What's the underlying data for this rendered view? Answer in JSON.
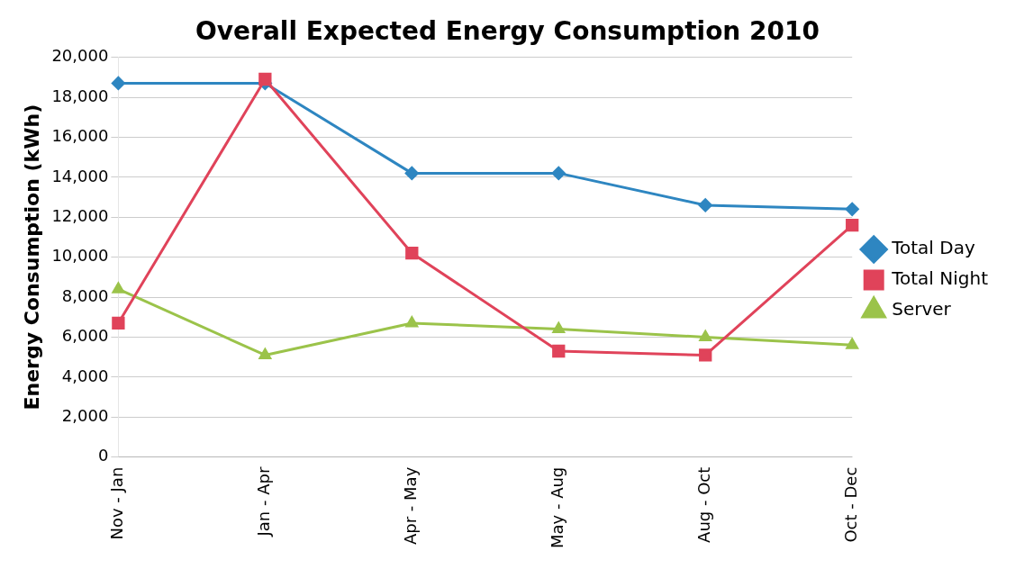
{
  "chart_data": {
    "type": "line",
    "title": "Overall Expected Energy Consumption 2010",
    "ylabel": "Energy Consumption (kWh)",
    "categories": [
      "Nov - Jan",
      "Jan - Apr",
      "Apr - May",
      "May - Aug",
      "Aug - Oct",
      "Oct - Dec"
    ],
    "series": [
      {
        "name": "Total Day",
        "color": "#2e86c1",
        "marker": "diamond",
        "values": [
          18700,
          18700,
          14200,
          14200,
          12600,
          12400
        ]
      },
      {
        "name": "Total Night",
        "color": "#e0435a",
        "marker": "square",
        "values": [
          6700,
          18900,
          10200,
          5300,
          5100,
          11600
        ]
      },
      {
        "name": "Server",
        "color": "#9bc34a",
        "marker": "triangle",
        "values": [
          8400,
          5100,
          6700,
          6400,
          6000,
          5600
        ]
      }
    ],
    "ylim": [
      0,
      20000
    ],
    "yticks": [
      0,
      {
        "value": 2000,
        "label": "2,000"
      },
      {
        "value": 4000,
        "label": "4,000"
      },
      {
        "value": 6000,
        "label": "6,000"
      },
      {
        "value": 8000,
        "label": "8,000"
      },
      {
        "value": 10000,
        "label": "10,000"
      },
      {
        "value": 12000,
        "label": "12,000"
      },
      {
        "value": 14000,
        "label": "14,000"
      },
      {
        "value": 16000,
        "label": "16,000"
      },
      {
        "value": 18000,
        "label": "18,000"
      },
      {
        "value": 20000,
        "label": "20,000"
      }
    ],
    "grid": "y",
    "legend": "right",
    "line_style": "solid"
  }
}
